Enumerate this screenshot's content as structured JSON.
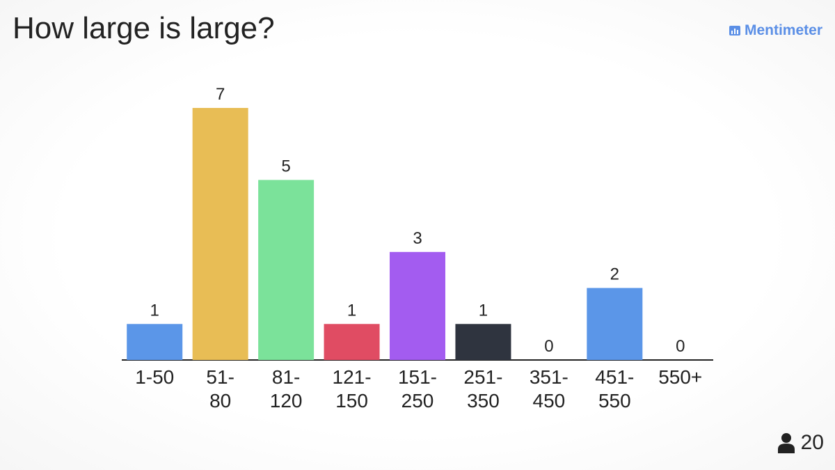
{
  "brand": "Mentimeter",
  "participants": 20,
  "chart_data": {
    "type": "bar",
    "title": "How large is large?",
    "categories": [
      "1-50",
      "51-80",
      "81-120",
      "121-150",
      "151-250",
      "251-350",
      "351-450",
      "451-550",
      "550+"
    ],
    "values": [
      1,
      7,
      5,
      1,
      3,
      1,
      0,
      2,
      0
    ],
    "colors": [
      "#5b96e8",
      "#e8bd55",
      "#7be29a",
      "#e04c63",
      "#a35cf0",
      "#2f343f",
      "#5b96e8",
      "#5b96e8",
      "#5b96e8"
    ]
  }
}
